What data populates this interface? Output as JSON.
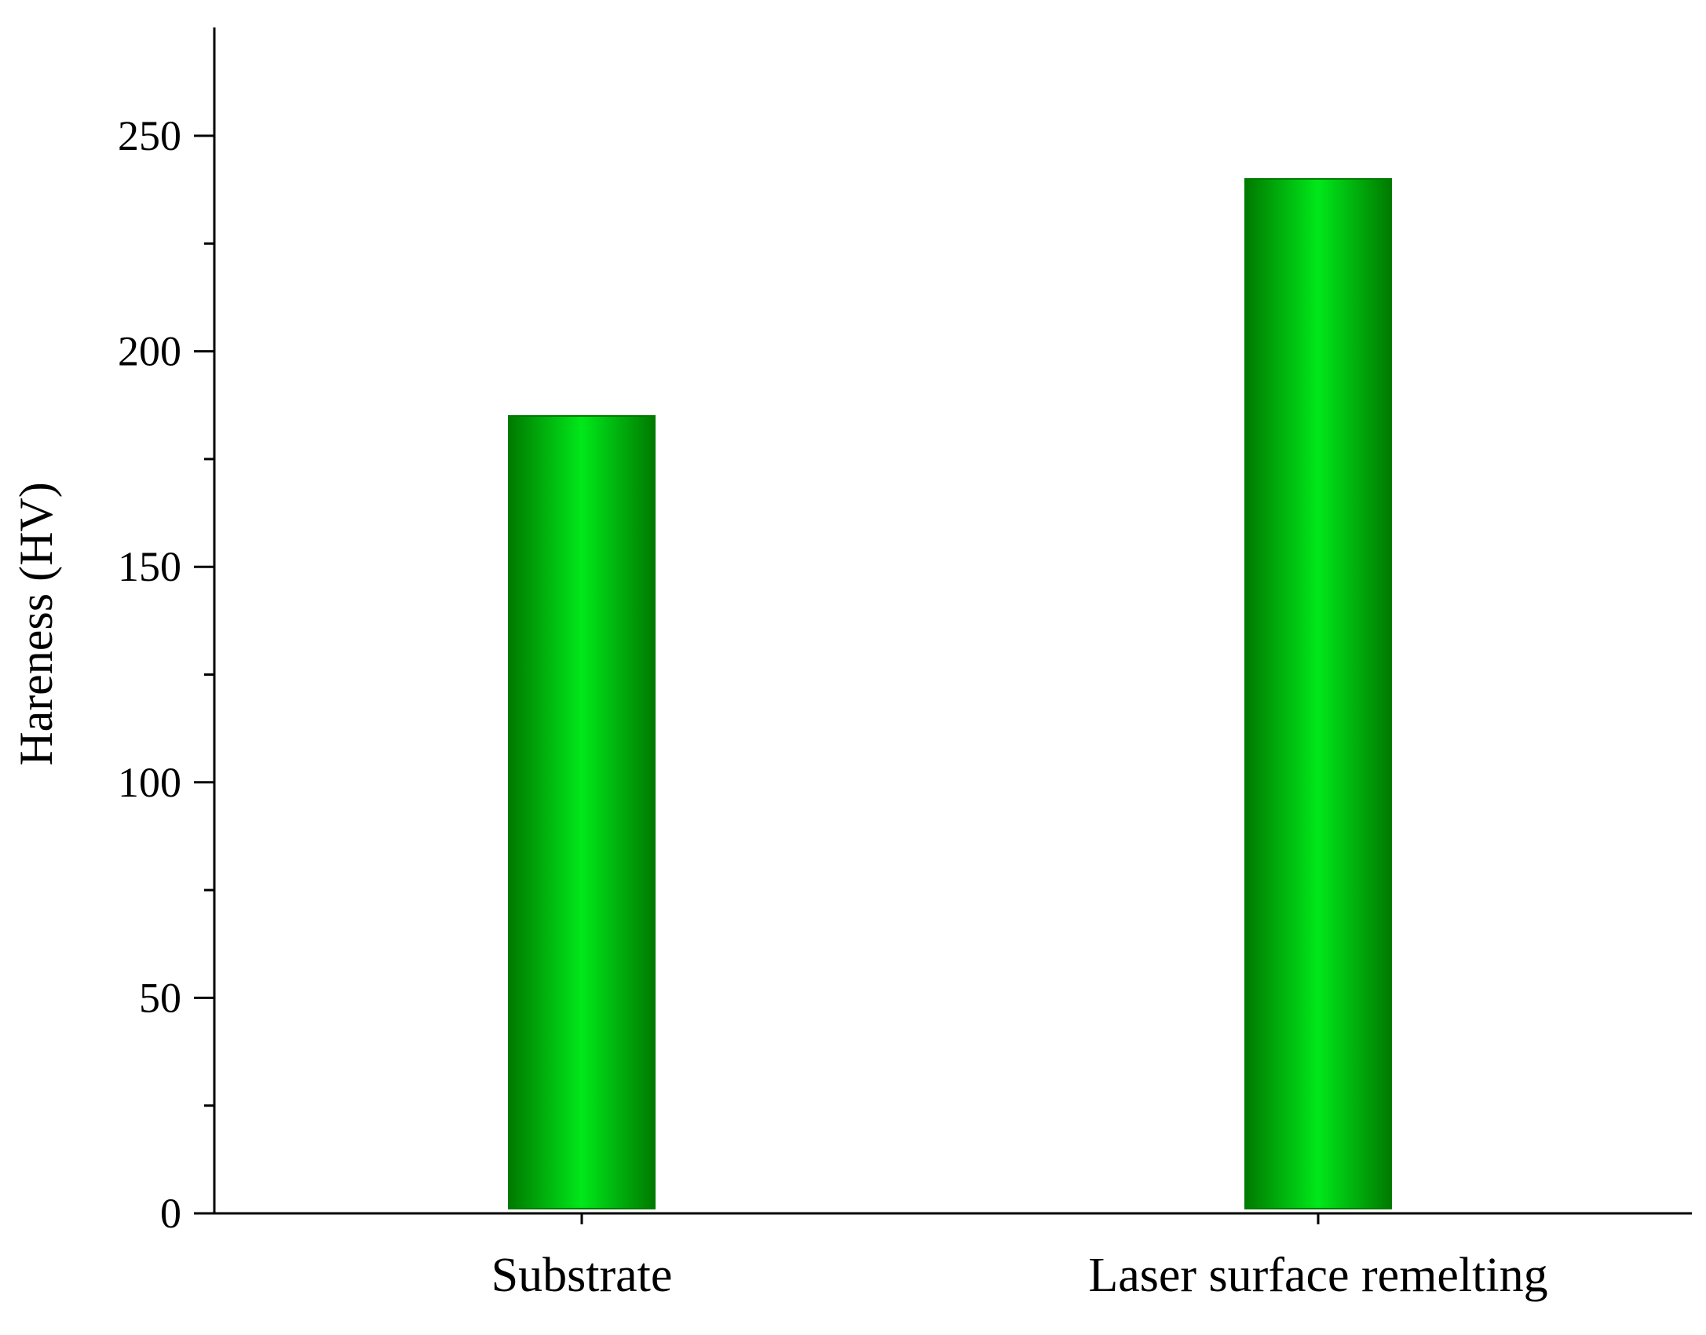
{
  "chart_data": {
    "type": "bar",
    "title": "",
    "xlabel": "",
    "ylabel": "Hareness (HV)",
    "categories": [
      "Substrate",
      "Laser surface remelting"
    ],
    "values": [
      185,
      240
    ],
    "ylim": [
      0,
      275
    ],
    "yticks": [
      0,
      50,
      100,
      150,
      200,
      250
    ],
    "yticks_minor": [
      25,
      75,
      125,
      175,
      225
    ],
    "grid": false,
    "legend": "none",
    "colors": {
      "bar_edge": "#007a00",
      "bar_center": "#00e81a",
      "axis": "#000000"
    }
  }
}
